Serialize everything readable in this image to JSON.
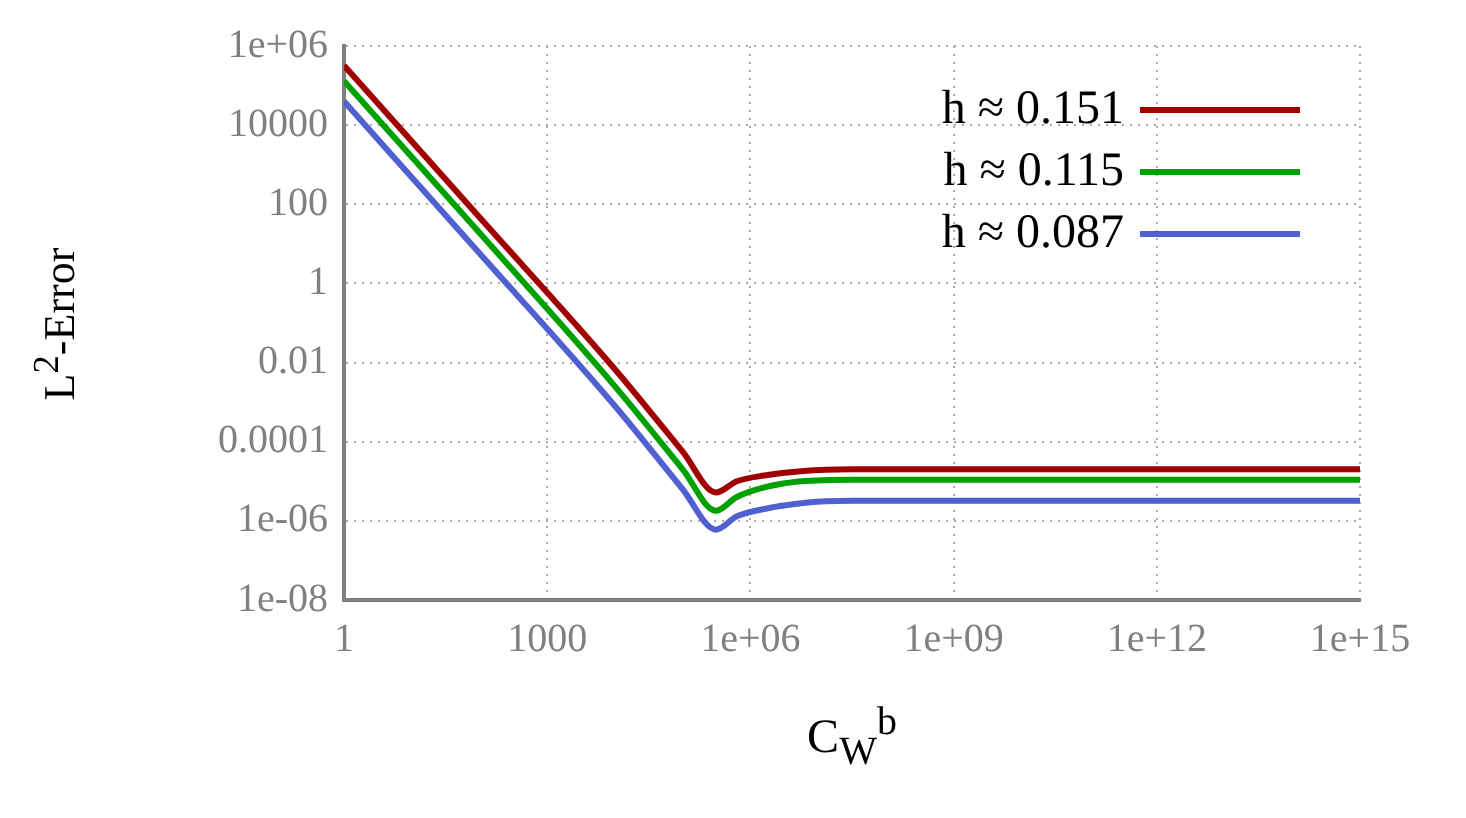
{
  "chart_data": {
    "type": "line",
    "xlabel": "C$_{W}$$^{b}$",
    "ylabel": "L$^{2}$-Error",
    "log": "xy",
    "grid": true,
    "legend": "top right",
    "marker": "none",
    "line_style": "solid",
    "xlim": [
      1,
      1000000000000000.0
    ],
    "ylim": [
      1e-08,
      1000000.0
    ],
    "xticks": [
      1,
      1000,
      {
        "value": 1000000.0,
        "label": "1e+06"
      },
      {
        "value": 1000000000.0,
        "label": "1e+09"
      },
      {
        "value": 1000000000000.0,
        "label": "1e+12"
      },
      {
        "value": 1000000000000000.0,
        "label": "1e+15"
      }
    ],
    "yticks": [
      {
        "value": 1e-08,
        "label": "1e-08"
      },
      {
        "value": 1e-06,
        "label": "1e-06"
      },
      0.0001,
      0.01,
      1,
      100,
      10000,
      {
        "value": 1000000.0,
        "label": "1e+06"
      }
    ],
    "x": [
      1,
      100,
      10000,
      100000,
      310000,
      630000,
      1600000,
      5600000,
      32000000,
      1000000000,
      1000000000000,
      1000000000000000
    ],
    "series": [
      {
        "name": "h ≈ 0.151",
        "color": "#a00000",
        "values": [
          320000,
          47,
          0.0068,
          5.6e-05,
          5.2e-06,
          1e-05,
          1.4e-05,
          1.8e-05,
          2e-05,
          2e-05,
          2e-05,
          2e-05
        ]
      },
      {
        "name": "h ≈ 0.115",
        "color": "#00a000",
        "values": [
          130000,
          19,
          0.0025,
          2e-05,
          1.8e-06,
          4e-06,
          7e-06,
          1e-05,
          1.1e-05,
          1.1e-05,
          1.1e-05,
          1.1e-05
        ]
      },
      {
        "name": "h ≈ 0.087",
        "color": "#5060d0",
        "values": [
          40000,
          5.8,
          0.0008,
          6.3e-06,
          6e-07,
          1.3e-06,
          2e-06,
          2.8e-06,
          3.2e-06,
          3.2e-06,
          3.2e-06,
          3.2e-06
        ]
      }
    ]
  }
}
